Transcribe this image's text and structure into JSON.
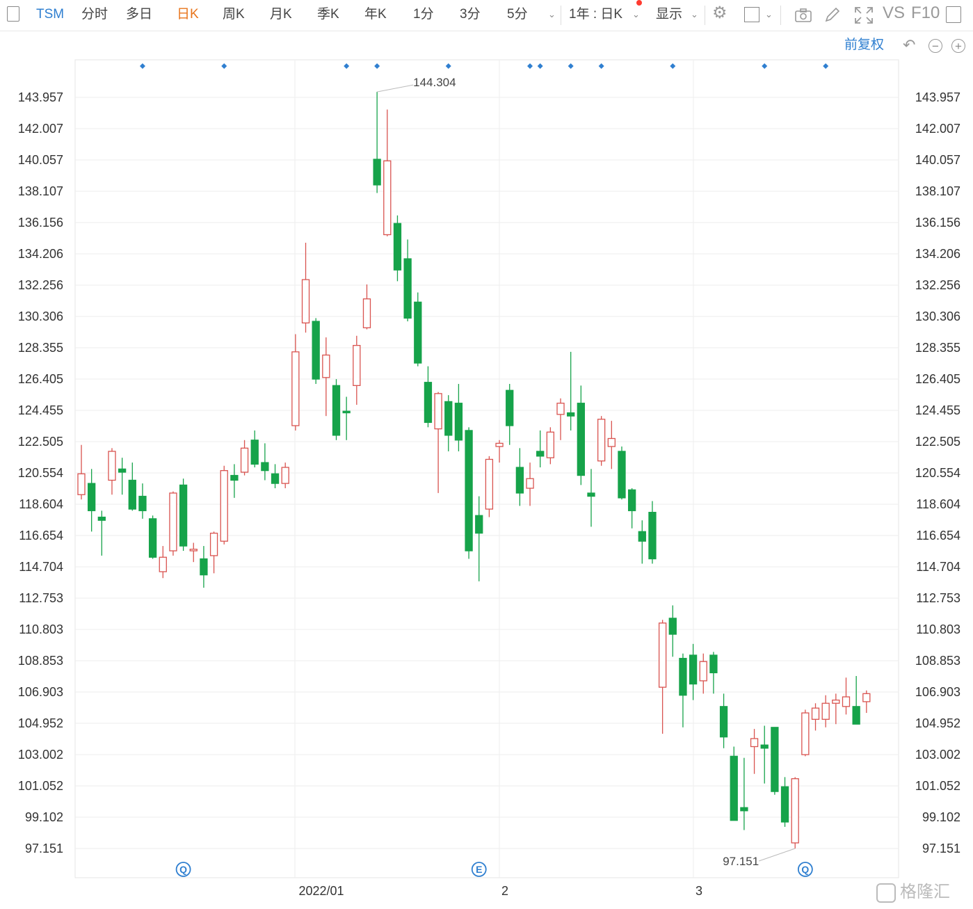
{
  "toolbar": {
    "symbol": "TSM",
    "tabs": [
      "分时",
      "多日",
      "日K",
      "周K",
      "月K",
      "季K",
      "年K",
      "1分",
      "3分",
      "5分"
    ],
    "active_tab": "日K",
    "range_select": "1年 : 日K",
    "display_label": "显示",
    "vs_label": "VS",
    "f10_label": "F10"
  },
  "subbar": {
    "adjust_label": "前复权"
  },
  "colors": {
    "up": "#d9534f",
    "down": "#16a34a",
    "marker": "#2f7fd0",
    "active_tab": "#e8741b",
    "grid": "#eeeeee"
  },
  "watermark": "格隆汇",
  "chart_data": {
    "type": "candlestick",
    "y_ticks": [
      "143.957",
      "142.007",
      "140.057",
      "138.107",
      "136.156",
      "134.206",
      "132.256",
      "130.306",
      "128.355",
      "126.405",
      "124.455",
      "122.505",
      "120.554",
      "118.604",
      "116.654",
      "114.704",
      "112.753",
      "110.803",
      "108.853",
      "106.903",
      "104.952",
      "103.002",
      "101.052",
      "99.102",
      "97.151"
    ],
    "x_labels": [
      "2022/01",
      "2",
      "3"
    ],
    "high_label": "144.304",
    "low_label": "97.151",
    "candles": [
      {
        "o": 119.2,
        "c": 120.5,
        "h": 122.3,
        "l": 118.9
      },
      {
        "o": 119.9,
        "c": 118.2,
        "h": 120.8,
        "l": 116.9
      },
      {
        "o": 117.8,
        "c": 117.6,
        "h": 118.2,
        "l": 115.4
      },
      {
        "o": 120.1,
        "c": 121.9,
        "h": 122.1,
        "l": 119.2
      },
      {
        "o": 120.8,
        "c": 120.6,
        "h": 121.5,
        "l": 119.2
      },
      {
        "o": 120.1,
        "c": 118.3,
        "h": 121.2,
        "l": 118.2
      },
      {
        "o": 119.1,
        "c": 118.2,
        "h": 119.9,
        "l": 117.7
      },
      {
        "o": 117.7,
        "c": 115.3,
        "h": 117.9,
        "l": 115.2
      },
      {
        "o": 114.4,
        "c": 115.3,
        "h": 116.0,
        "l": 114.0
      },
      {
        "o": 115.7,
        "c": 119.3,
        "h": 119.4,
        "l": 115.4
      },
      {
        "o": 119.8,
        "c": 116.0,
        "h": 120.2,
        "l": 115.7
      },
      {
        "o": 115.7,
        "c": 115.8,
        "h": 116.2,
        "l": 115.0
      },
      {
        "o": 115.2,
        "c": 114.2,
        "h": 116.0,
        "l": 113.4
      },
      {
        "o": 115.4,
        "c": 116.8,
        "h": 116.9,
        "l": 114.3
      },
      {
        "o": 116.3,
        "c": 120.7,
        "h": 121.0,
        "l": 116.1
      },
      {
        "o": 120.4,
        "c": 120.1,
        "h": 121.1,
        "l": 119.0
      },
      {
        "o": 120.6,
        "c": 122.1,
        "h": 122.6,
        "l": 120.4
      },
      {
        "o": 122.6,
        "c": 121.1,
        "h": 123.2,
        "l": 120.9
      },
      {
        "o": 121.2,
        "c": 120.7,
        "h": 122.4,
        "l": 120.1
      },
      {
        "o": 120.5,
        "c": 119.9,
        "h": 121.1,
        "l": 119.6
      },
      {
        "o": 119.9,
        "c": 120.9,
        "h": 121.2,
        "l": 119.6
      },
      {
        "o": 123.5,
        "c": 128.1,
        "h": 129.2,
        "l": 123.2
      },
      {
        "o": 129.9,
        "c": 132.6,
        "h": 134.9,
        "l": 129.3
      },
      {
        "o": 130.0,
        "c": 126.4,
        "h": 130.2,
        "l": 126.1
      },
      {
        "o": 126.5,
        "c": 127.9,
        "h": 129.0,
        "l": 124.1
      },
      {
        "o": 126.0,
        "c": 122.9,
        "h": 126.4,
        "l": 122.6
      },
      {
        "o": 124.4,
        "c": 124.3,
        "h": 125.3,
        "l": 122.6
      },
      {
        "o": 126.0,
        "c": 128.5,
        "h": 129.1,
        "l": 124.8
      },
      {
        "o": 129.6,
        "c": 131.4,
        "h": 132.3,
        "l": 129.5
      },
      {
        "o": 140.1,
        "c": 138.5,
        "h": 144.3,
        "l": 138.0
      },
      {
        "o": 135.4,
        "c": 140.0,
        "h": 143.2,
        "l": 135.3
      },
      {
        "o": 136.1,
        "c": 133.2,
        "h": 136.6,
        "l": 132.5
      },
      {
        "o": 133.9,
        "c": 130.2,
        "h": 135.1,
        "l": 130.0
      },
      {
        "o": 131.2,
        "c": 127.4,
        "h": 131.8,
        "l": 127.2
      },
      {
        "o": 126.2,
        "c": 123.7,
        "h": 127.2,
        "l": 123.4
      },
      {
        "o": 123.3,
        "c": 125.5,
        "h": 125.6,
        "l": 119.3
      },
      {
        "o": 125.0,
        "c": 122.9,
        "h": 125.4,
        "l": 121.9
      },
      {
        "o": 124.9,
        "c": 122.6,
        "h": 126.1,
        "l": 121.9
      },
      {
        "o": 123.2,
        "c": 115.7,
        "h": 123.4,
        "l": 115.2
      },
      {
        "o": 117.9,
        "c": 116.8,
        "h": 119.1,
        "l": 113.8
      },
      {
        "o": 118.3,
        "c": 121.4,
        "h": 121.6,
        "l": 117.8
      },
      {
        "o": 122.2,
        "c": 122.4,
        "h": 122.6,
        "l": 121.2
      },
      {
        "o": 125.7,
        "c": 123.5,
        "h": 126.1,
        "l": 122.3
      },
      {
        "o": 120.9,
        "c": 119.3,
        "h": 122.1,
        "l": 118.5
      },
      {
        "o": 119.6,
        "c": 120.2,
        "h": 121.2,
        "l": 118.5
      },
      {
        "o": 121.9,
        "c": 121.6,
        "h": 123.2,
        "l": 120.9
      },
      {
        "o": 121.5,
        "c": 123.1,
        "h": 123.4,
        "l": 121.1
      },
      {
        "o": 124.2,
        "c": 124.9,
        "h": 125.2,
        "l": 122.6
      },
      {
        "o": 124.3,
        "c": 124.1,
        "h": 128.1,
        "l": 123.2
      },
      {
        "o": 124.9,
        "c": 120.4,
        "h": 126.0,
        "l": 119.8
      },
      {
        "o": 119.3,
        "c": 119.1,
        "h": 120.8,
        "l": 117.2
      },
      {
        "o": 121.3,
        "c": 123.9,
        "h": 124.1,
        "l": 121.0
      },
      {
        "o": 122.2,
        "c": 122.7,
        "h": 123.8,
        "l": 120.8
      },
      {
        "o": 121.9,
        "c": 119.0,
        "h": 122.2,
        "l": 118.9
      },
      {
        "o": 119.5,
        "c": 118.2,
        "h": 119.6,
        "l": 117.1
      },
      {
        "o": 116.9,
        "c": 116.3,
        "h": 117.6,
        "l": 114.9
      },
      {
        "o": 118.1,
        "c": 115.2,
        "h": 118.8,
        "l": 114.9
      },
      {
        "o": 107.2,
        "c": 111.2,
        "h": 111.4,
        "l": 104.3
      },
      {
        "o": 111.5,
        "c": 110.5,
        "h": 112.3,
        "l": 109.1
      },
      {
        "o": 109.0,
        "c": 106.7,
        "h": 109.3,
        "l": 104.7
      },
      {
        "o": 109.2,
        "c": 107.4,
        "h": 109.9,
        "l": 106.4
      },
      {
        "o": 107.6,
        "c": 108.8,
        "h": 109.3,
        "l": 106.8
      },
      {
        "o": 109.2,
        "c": 108.1,
        "h": 109.4,
        "l": 106.8
      },
      {
        "o": 106.0,
        "c": 104.1,
        "h": 106.8,
        "l": 103.4
      },
      {
        "o": 102.9,
        "c": 98.9,
        "h": 103.5,
        "l": 98.9
      },
      {
        "o": 99.7,
        "c": 99.5,
        "h": 102.8,
        "l": 98.3
      },
      {
        "o": 103.5,
        "c": 104.0,
        "h": 104.6,
        "l": 101.8
      },
      {
        "o": 103.6,
        "c": 103.4,
        "h": 104.8,
        "l": 101.2
      },
      {
        "o": 104.7,
        "c": 100.7,
        "h": 104.7,
        "l": 100.5
      },
      {
        "o": 101.0,
        "c": 98.8,
        "h": 101.6,
        "l": 98.5
      },
      {
        "o": 97.5,
        "c": 101.5,
        "h": 101.6,
        "l": 97.151
      },
      {
        "o": 103.0,
        "c": 105.6,
        "h": 105.8,
        "l": 102.9
      },
      {
        "o": 105.2,
        "c": 105.9,
        "h": 106.2,
        "l": 104.5
      },
      {
        "o": 105.2,
        "c": 106.2,
        "h": 106.7,
        "l": 104.7
      },
      {
        "o": 106.2,
        "c": 106.4,
        "h": 106.8,
        "l": 104.9
      },
      {
        "o": 106.0,
        "c": 106.6,
        "h": 107.8,
        "l": 105.5
      },
      {
        "o": 106.0,
        "c": 104.9,
        "h": 107.9,
        "l": 104.9
      },
      {
        "o": 106.3,
        "c": 106.8,
        "h": 107.0,
        "l": 105.6
      }
    ],
    "event_markers": [
      {
        "i": 10,
        "label": "Q"
      },
      {
        "i": 39,
        "label": "E"
      },
      {
        "i": 71,
        "label": "Q"
      }
    ],
    "dividend_markers": [
      6,
      14,
      26,
      29,
      36,
      44,
      45,
      48,
      51,
      58,
      67,
      73
    ]
  }
}
